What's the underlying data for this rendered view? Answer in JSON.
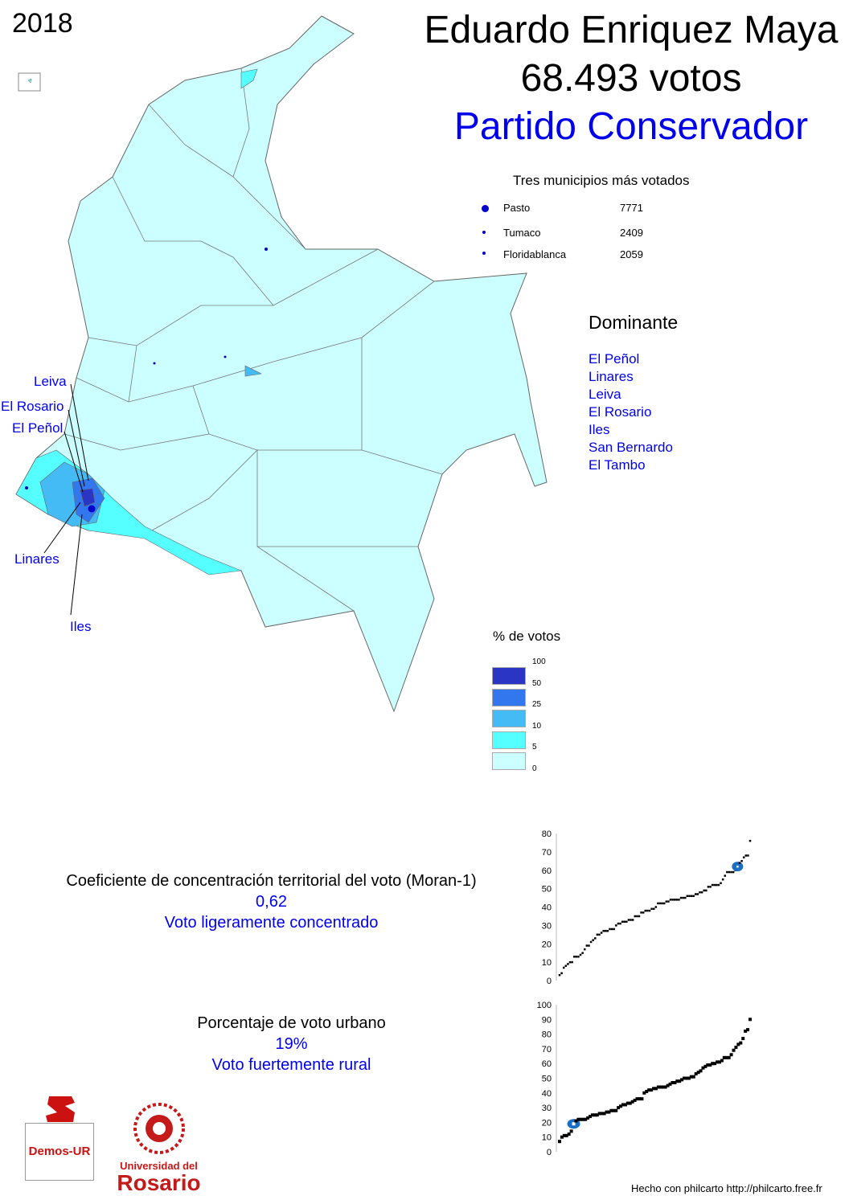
{
  "year": "2018",
  "candidate": {
    "name": "Eduardo Enriquez Maya",
    "votes": "68.493 votos",
    "party": "Partido Conservador"
  },
  "top_municipalities": {
    "title": "Tres municipios más votados",
    "items": [
      {
        "name": "Pasto",
        "votes": "7771"
      },
      {
        "name": "Tumaco",
        "votes": "2409"
      },
      {
        "name": "Floridablanca",
        "votes": "2059"
      }
    ]
  },
  "dominant": {
    "title": "Dominante",
    "items": [
      "El Peñol",
      "Linares",
      "Leiva",
      "El Rosario",
      "Iles",
      "San Bernardo",
      "El Tambo"
    ]
  },
  "map_labels": [
    "Leiva",
    "El Rosario",
    "El Peñol",
    "Linares",
    "Iles"
  ],
  "legend": {
    "title": "% de votos",
    "ticks": [
      "100",
      "50",
      "25",
      "10",
      "5",
      "0"
    ],
    "colors": [
      "#2a35c4",
      "#3377ee",
      "#44bbf4",
      "#55ffff",
      "#ccffff"
    ]
  },
  "moran": {
    "title": "Coeficiente de concentración territorial del voto (Moran-1)",
    "value": "0,62",
    "label": "Voto ligeramente concentrado"
  },
  "urban": {
    "title": "Porcentaje de voto urbano",
    "value": "19%",
    "label": "Voto fuertemente rural"
  },
  "chart_data": [
    {
      "type": "scatter",
      "yticks": [
        "0",
        "10",
        "20",
        "30",
        "40",
        "50",
        "60",
        "70",
        "80"
      ],
      "ylim": [
        0,
        80
      ],
      "highlight": 62,
      "highlight_color": "#1a6fc4",
      "values": [
        3,
        4,
        7,
        8,
        9,
        10,
        10,
        13,
        13,
        13,
        14,
        15,
        17,
        19,
        19,
        21,
        22,
        23,
        25,
        25,
        26,
        27,
        27,
        27,
        28,
        28,
        28,
        30,
        31,
        31,
        32,
        32,
        32,
        33,
        33,
        33,
        35,
        35,
        35,
        37,
        37,
        38,
        38,
        38,
        39,
        39,
        40,
        42,
        42,
        42,
        42,
        43,
        43,
        44,
        44,
        44,
        44,
        44,
        45,
        45,
        45,
        46,
        46,
        46,
        46,
        47,
        47,
        48,
        48,
        49,
        49,
        51,
        51,
        52,
        52,
        52,
        52,
        53,
        55,
        57,
        59,
        59,
        59,
        59,
        60,
        62,
        64,
        65,
        67,
        68,
        68,
        76
      ]
    },
    {
      "type": "scatter",
      "yticks": [
        "0",
        "10",
        "20",
        "30",
        "40",
        "50",
        "60",
        "70",
        "80",
        "90",
        "100"
      ],
      "ylim": [
        0,
        100
      ],
      "highlight": 19,
      "highlight_color": "#1a6fc4",
      "values": [
        7,
        10,
        11,
        11,
        12,
        14,
        19,
        21,
        22,
        22,
        22,
        22,
        23,
        24,
        25,
        25,
        25,
        26,
        26,
        26,
        27,
        27,
        28,
        28,
        28,
        30,
        31,
        32,
        32,
        33,
        33,
        34,
        35,
        36,
        36,
        36,
        40,
        41,
        42,
        42,
        43,
        43,
        44,
        44,
        44,
        44,
        45,
        46,
        47,
        47,
        48,
        48,
        49,
        50,
        50,
        50,
        51,
        51,
        53,
        54,
        55,
        57,
        58,
        59,
        59,
        60,
        60,
        61,
        61,
        62,
        64,
        64,
        64,
        66,
        69,
        71,
        73,
        74,
        77,
        82,
        83,
        90
      ]
    }
  ],
  "logos": {
    "demos": "Demos-UR",
    "university_line1": "Universidad del",
    "university_line2": "Rosario"
  },
  "credit": "Hecho con philcarto http://philcarto.free.fr"
}
